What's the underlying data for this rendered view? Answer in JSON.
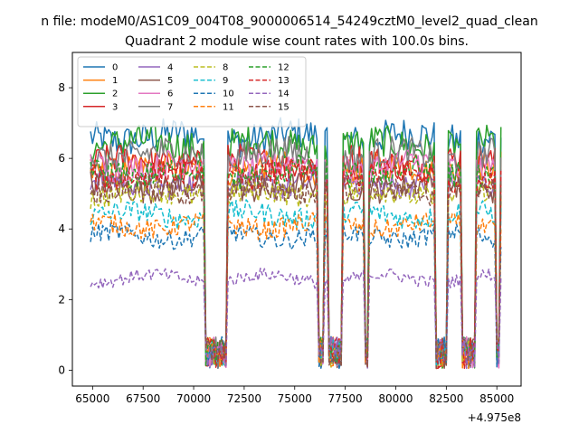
{
  "suptitle": "n file: modeM0/AS1C09_004T08_9000006514_54249cztM0_level2_quad_clean",
  "chart_data": {
    "type": "line",
    "title": "Quadrant 2 module wise count rates with 100.0s bins.",
    "xlabel": "",
    "ylabel": "",
    "x_offset_label": "+4.975e8",
    "xlim": [
      64000,
      86200
    ],
    "ylim": [
      -0.45,
      9.0
    ],
    "xticks": [
      65000,
      67500,
      70000,
      72500,
      75000,
      77500,
      80000,
      82500,
      85000
    ],
    "xtick_labels": [
      "65000",
      "67500",
      "70000",
      "72500",
      "75000",
      "77500",
      "80000",
      "82500",
      "85000"
    ],
    "yticks": [
      0,
      2,
      4,
      6,
      8
    ],
    "ytick_labels": [
      "0",
      "2",
      "4",
      "6",
      "8"
    ],
    "legend_position": "upper-left",
    "legend_columns": 4,
    "grid": false,
    "x_start": 64900,
    "x_end": 85200,
    "bin_width": 100,
    "low_intervals": [
      [
        70550,
        71650
      ],
      [
        76150,
        76450
      ],
      [
        76700,
        77300
      ],
      [
        78450,
        78650
      ],
      [
        81950,
        82550
      ],
      [
        83250,
        83950
      ],
      [
        84950,
        85150
      ]
    ],
    "series": [
      {
        "name": "0",
        "level": 6.6,
        "color": "#1f77b4",
        "dash": "solid"
      },
      {
        "name": "1",
        "level": 5.7,
        "color": "#ff7f0e",
        "dash": "solid"
      },
      {
        "name": "2",
        "level": 6.4,
        "color": "#2ca02c",
        "dash": "solid"
      },
      {
        "name": "3",
        "level": 5.9,
        "color": "#d62728",
        "dash": "solid"
      },
      {
        "name": "4",
        "level": 5.3,
        "color": "#9467bd",
        "dash": "solid"
      },
      {
        "name": "5",
        "level": 5.2,
        "color": "#8c564b",
        "dash": "solid"
      },
      {
        "name": "6",
        "level": 5.8,
        "color": "#e377c2",
        "dash": "solid"
      },
      {
        "name": "7",
        "level": 6.1,
        "color": "#7f7f7f",
        "dash": "solid"
      },
      {
        "name": "8",
        "level": 5.0,
        "color": "#bcbd22",
        "dash": "dashed"
      },
      {
        "name": "9",
        "level": 4.4,
        "color": "#17becf",
        "dash": "dashed"
      },
      {
        "name": "10",
        "level": 3.8,
        "color": "#1f77b4",
        "dash": "dashed"
      },
      {
        "name": "11",
        "level": 4.1,
        "color": "#ff7f0e",
        "dash": "dashed"
      },
      {
        "name": "12",
        "level": 5.6,
        "color": "#2ca02c",
        "dash": "dashed"
      },
      {
        "name": "13",
        "level": 5.5,
        "color": "#d62728",
        "dash": "dashed"
      },
      {
        "name": "14",
        "level": 2.6,
        "color": "#9467bd",
        "dash": "dashed"
      },
      {
        "name": "15",
        "level": 5.1,
        "color": "#8c564b",
        "dash": "dashed"
      }
    ]
  }
}
